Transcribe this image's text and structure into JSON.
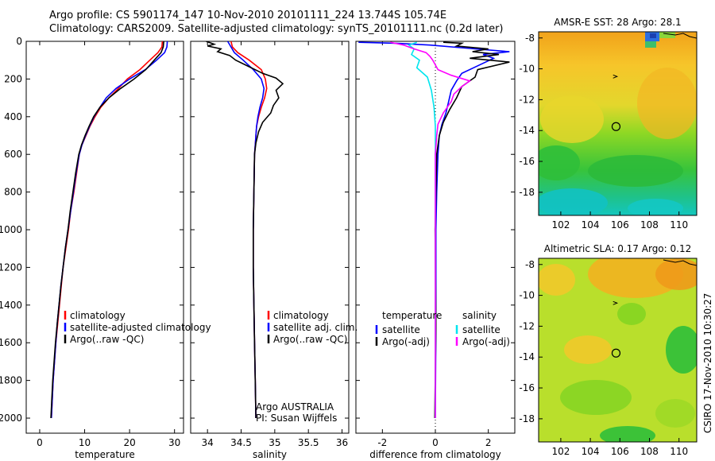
{
  "header": {
    "line1": "Argo profile: CS 5901174_147 10-Nov-2010 20101111_224 13.744S 105.74E",
    "line2": "Climatology: CARS2009. Satellite-adjusted climatology: synTS_20101111.nc (0.2d later)"
  },
  "footer": {
    "credit": "CSIRO 17-Nov-2010 10:30:27"
  },
  "chart_data": [
    {
      "id": "temperature",
      "type": "line",
      "xlabel": "temperature",
      "ylabel": "",
      "xlim": [
        -3,
        32
      ],
      "ylim": [
        0,
        2080
      ],
      "y_reversed": true,
      "xticks": [
        0,
        10,
        20,
        30
      ],
      "yticks": [
        0,
        200,
        400,
        600,
        800,
        1000,
        1200,
        1400,
        1600,
        1800,
        2000
      ],
      "legend": [
        "climatology",
        "satellite-adjusted climatology",
        "Argo(..raw -QC)"
      ],
      "series": [
        {
          "name": "climatology",
          "color": "#ff0000",
          "points": [
            [
              27.3,
              0
            ],
            [
              27.2,
              30
            ],
            [
              26.3,
              60
            ],
            [
              24.5,
              100
            ],
            [
              22.3,
              150
            ],
            [
              19.5,
              200
            ],
            [
              17.5,
              250
            ],
            [
              15.4,
              300
            ],
            [
              13.6,
              350
            ],
            [
              12.3,
              400
            ],
            [
              11.2,
              450
            ],
            [
              10.3,
              500
            ],
            [
              9.4,
              550
            ],
            [
              8.8,
              600
            ],
            [
              8.2,
              700
            ],
            [
              7.6,
              800
            ],
            [
              6.9,
              900
            ],
            [
              6.4,
              1000
            ],
            [
              5.8,
              1100
            ],
            [
              5.2,
              1200
            ],
            [
              4.8,
              1300
            ],
            [
              4.4,
              1400
            ],
            [
              4.0,
              1500
            ],
            [
              3.6,
              1600
            ],
            [
              3.3,
              1700
            ],
            [
              3.0,
              1800
            ],
            [
              2.8,
              1900
            ],
            [
              2.6,
              2000
            ]
          ]
        },
        {
          "name": "satellite-adjusted climatology",
          "color": "#0000ff",
          "points": [
            [
              28.4,
              0
            ],
            [
              28.3,
              30
            ],
            [
              27.8,
              60
            ],
            [
              26.0,
              100
            ],
            [
              23.5,
              150
            ],
            [
              20.0,
              200
            ],
            [
              17.0,
              250
            ],
            [
              14.8,
              300
            ],
            [
              13.4,
              350
            ],
            [
              12.1,
              400
            ],
            [
              11.1,
              450
            ],
            [
              10.2,
              500
            ],
            [
              9.4,
              550
            ],
            [
              8.8,
              600
            ],
            [
              8.1,
              700
            ],
            [
              7.5,
              800
            ],
            [
              6.9,
              900
            ],
            [
              6.3,
              1000
            ],
            [
              5.7,
              1100
            ],
            [
              5.2,
              1200
            ],
            [
              4.7,
              1300
            ],
            [
              4.3,
              1400
            ],
            [
              3.9,
              1500
            ],
            [
              3.6,
              1600
            ],
            [
              3.3,
              1700
            ],
            [
              3.0,
              1800
            ],
            [
              2.8,
              1900
            ],
            [
              2.6,
              2000
            ]
          ]
        },
        {
          "name": "Argo(..raw -QC)",
          "color": "#000000",
          "points": [
            [
              27.6,
              0
            ],
            [
              27.5,
              30
            ],
            [
              27.0,
              60
            ],
            [
              25.5,
              100
            ],
            [
              23.6,
              150
            ],
            [
              21.0,
              200
            ],
            [
              18.0,
              250
            ],
            [
              15.4,
              300
            ],
            [
              13.4,
              350
            ],
            [
              12.0,
              400
            ],
            [
              11.0,
              450
            ],
            [
              10.1,
              500
            ],
            [
              9.3,
              550
            ],
            [
              8.7,
              600
            ],
            [
              8.0,
              700
            ],
            [
              7.4,
              800
            ],
            [
              6.8,
              900
            ],
            [
              6.3,
              1000
            ],
            [
              5.7,
              1100
            ],
            [
              5.2,
              1200
            ],
            [
              4.7,
              1300
            ],
            [
              4.3,
              1400
            ],
            [
              3.9,
              1500
            ],
            [
              3.5,
              1600
            ],
            [
              3.2,
              1700
            ],
            [
              2.9,
              1800
            ],
            [
              2.7,
              1900
            ],
            [
              2.5,
              2000
            ]
          ]
        }
      ]
    },
    {
      "id": "salinity",
      "type": "line",
      "xlabel": "salinity",
      "ylabel": "",
      "xlim": [
        33.75,
        36.1
      ],
      "ylim": [
        0,
        2080
      ],
      "y_reversed": true,
      "xticks": [
        34,
        34.5,
        35,
        35.5,
        36
      ],
      "yticks": [
        0,
        200,
        400,
        600,
        800,
        1000,
        1200,
        1400,
        1600,
        1800,
        2000
      ],
      "legend": [
        "climatology",
        "satellite adj. clim.",
        "Argo(..raw -QC)"
      ],
      "annotations": [
        "Argo AUSTRALIA",
        "PI: Susan Wijffels"
      ],
      "series": [
        {
          "name": "climatology",
          "color": "#ff0000",
          "points": [
            [
              34.35,
              0
            ],
            [
              34.37,
              30
            ],
            [
              34.45,
              60
            ],
            [
              34.62,
              100
            ],
            [
              34.8,
              150
            ],
            [
              34.86,
              200
            ],
            [
              34.88,
              250
            ],
            [
              34.85,
              300
            ],
            [
              34.8,
              350
            ],
            [
              34.76,
              400
            ],
            [
              34.73,
              450
            ],
            [
              34.72,
              500
            ],
            [
              34.71,
              550
            ],
            [
              34.7,
              600
            ],
            [
              34.69,
              800
            ],
            [
              34.68,
              1000
            ],
            [
              34.68,
              1200
            ],
            [
              34.69,
              1400
            ],
            [
              34.7,
              1600
            ],
            [
              34.71,
              1800
            ],
            [
              34.72,
              2000
            ]
          ]
        },
        {
          "name": "satellite adj. clim.",
          "color": "#0000ff",
          "points": [
            [
              34.3,
              0
            ],
            [
              34.35,
              30
            ],
            [
              34.4,
              60
            ],
            [
              34.53,
              100
            ],
            [
              34.68,
              150
            ],
            [
              34.8,
              200
            ],
            [
              34.84,
              250
            ],
            [
              34.82,
              300
            ],
            [
              34.78,
              350
            ],
            [
              34.75,
              400
            ],
            [
              34.73,
              450
            ],
            [
              34.72,
              500
            ],
            [
              34.71,
              550
            ],
            [
              34.7,
              600
            ],
            [
              34.69,
              800
            ],
            [
              34.68,
              1000
            ],
            [
              34.68,
              1200
            ],
            [
              34.69,
              1400
            ],
            [
              34.7,
              1600
            ],
            [
              34.71,
              1800
            ],
            [
              34.72,
              2000
            ]
          ]
        },
        {
          "name": "Argo(..raw -QC)",
          "color": "#000000",
          "points": [
            [
              33.98,
              0
            ],
            [
              34.1,
              15
            ],
            [
              34.0,
              25
            ],
            [
              34.2,
              40
            ],
            [
              34.15,
              55
            ],
            [
              34.33,
              75
            ],
            [
              34.42,
              100
            ],
            [
              34.62,
              135
            ],
            [
              34.82,
              170
            ],
            [
              35.02,
              195
            ],
            [
              35.12,
              225
            ],
            [
              35.02,
              260
            ],
            [
              35.06,
              300
            ],
            [
              34.98,
              340
            ],
            [
              34.94,
              380
            ],
            [
              34.82,
              430
            ],
            [
              34.76,
              480
            ],
            [
              34.72,
              540
            ],
            [
              34.7,
              600
            ],
            [
              34.69,
              800
            ],
            [
              34.68,
              1000
            ],
            [
              34.68,
              1200
            ],
            [
              34.69,
              1400
            ],
            [
              34.7,
              1600
            ],
            [
              34.71,
              1800
            ],
            [
              34.72,
              2000
            ]
          ]
        }
      ]
    },
    {
      "id": "difference",
      "type": "line",
      "xlabel": "difference from climatology",
      "ylabel": "",
      "xlim": [
        -3,
        3
      ],
      "ylim": [
        0,
        2080
      ],
      "y_reversed": true,
      "xticks": [
        -2,
        0,
        2
      ],
      "yticks": [
        0,
        200,
        400,
        600,
        800,
        1000,
        1200,
        1400,
        1600,
        1800,
        2000
      ],
      "legend_titles": [
        "temperature",
        "salinity"
      ],
      "legend": [
        "satellite",
        "Argo(-adj)",
        "satellite",
        "Argo(-adj)"
      ],
      "series": [
        {
          "name": "satellite",
          "variable": "temperature",
          "color": "#0000ff",
          "points": [
            [
              -2.9,
              5
            ],
            [
              -1.5,
              10
            ],
            [
              -0.2,
              20
            ],
            [
              1.5,
              40
            ],
            [
              2.8,
              55
            ],
            [
              1.8,
              70
            ],
            [
              2.2,
              90
            ],
            [
              1.6,
              130
            ],
            [
              1.0,
              170
            ],
            [
              0.8,
              210
            ],
            [
              0.6,
              260
            ],
            [
              0.5,
              320
            ],
            [
              0.4,
              380
            ],
            [
              0.25,
              440
            ],
            [
              0.15,
              500
            ],
            [
              0.1,
              600
            ],
            [
              0.05,
              800
            ],
            [
              0.02,
              1000
            ],
            [
              0.02,
              1500
            ],
            [
              0.0,
              2000
            ]
          ]
        },
        {
          "name": "Argo(-adj)",
          "variable": "temperature",
          "color": "#000000",
          "points": [
            [
              0.3,
              5
            ],
            [
              1.0,
              10
            ],
            [
              0.8,
              25
            ],
            [
              2.0,
              40
            ],
            [
              1.4,
              55
            ],
            [
              2.4,
              70
            ],
            [
              1.3,
              90
            ],
            [
              2.8,
              110
            ],
            [
              1.6,
              150
            ],
            [
              1.5,
              190
            ],
            [
              1.0,
              240
            ],
            [
              0.8,
              300
            ],
            [
              0.55,
              360
            ],
            [
              0.3,
              430
            ],
            [
              0.15,
              500
            ],
            [
              0.05,
              600
            ],
            [
              0.02,
              800
            ],
            [
              -0.01,
              1000
            ],
            [
              0.02,
              1500
            ],
            [
              -0.02,
              2000
            ]
          ]
        },
        {
          "name": "satellite",
          "variable": "salinity",
          "color": "#00e5ee",
          "points": [
            [
              -0.7,
              5
            ],
            [
              -1.0,
              20
            ],
            [
              -0.8,
              40
            ],
            [
              -0.9,
              70
            ],
            [
              -0.6,
              100
            ],
            [
              -0.7,
              140
            ],
            [
              -0.3,
              190
            ],
            [
              -0.15,
              260
            ],
            [
              -0.05,
              350
            ],
            [
              0.0,
              450
            ],
            [
              0.0,
              700
            ],
            [
              0.0,
              1000
            ],
            [
              0.0,
              2000
            ]
          ]
        },
        {
          "name": "Argo(-adj)",
          "variable": "salinity",
          "color": "#ff00ff",
          "points": [
            [
              -1.7,
              5
            ],
            [
              -1.2,
              20
            ],
            [
              -0.8,
              40
            ],
            [
              -0.35,
              60
            ],
            [
              -0.2,
              80
            ],
            [
              -0.1,
              100
            ],
            [
              0.1,
              150
            ],
            [
              0.6,
              180
            ],
            [
              1.3,
              210
            ],
            [
              1.0,
              240
            ],
            [
              0.7,
              280
            ],
            [
              0.6,
              320
            ],
            [
              0.3,
              380
            ],
            [
              0.1,
              440
            ],
            [
              0.05,
              500
            ],
            [
              0.0,
              600
            ],
            [
              0.0,
              1000
            ],
            [
              0.0,
              2000
            ]
          ]
        }
      ]
    },
    {
      "id": "sst_map",
      "type": "heatmap",
      "title": "AMSR-E SST: 28 Argo: 28.1",
      "xlim": [
        100.5,
        111.2
      ],
      "ylim": [
        -19.5,
        -7.6
      ],
      "xticks": [
        102,
        104,
        106,
        108,
        110
      ],
      "yticks": [
        -8,
        -10,
        -12,
        -14,
        -16,
        -18
      ],
      "marker": {
        "lon": 105.74,
        "lat": -13.744
      },
      "colors": [
        "#f5a51c",
        "#fdd835",
        "#c6e82a",
        "#7ed321",
        "#2dbf3a",
        "#00c2b5",
        "#2b6ee0"
      ]
    },
    {
      "id": "sla_map",
      "type": "heatmap",
      "title": "Altimetric SLA: 0.17 Argo: 0.12",
      "xlim": [
        100.5,
        111.2
      ],
      "ylim": [
        -19.5,
        -7.6
      ],
      "xticks": [
        102,
        104,
        106,
        108,
        110
      ],
      "yticks": [
        -8,
        -10,
        -12,
        -14,
        -16,
        -18
      ],
      "marker": {
        "lon": 105.74,
        "lat": -13.744
      },
      "colors": [
        "#f5a51c",
        "#fdd835",
        "#c6e82a",
        "#7ed321",
        "#2dbf3a"
      ]
    }
  ]
}
